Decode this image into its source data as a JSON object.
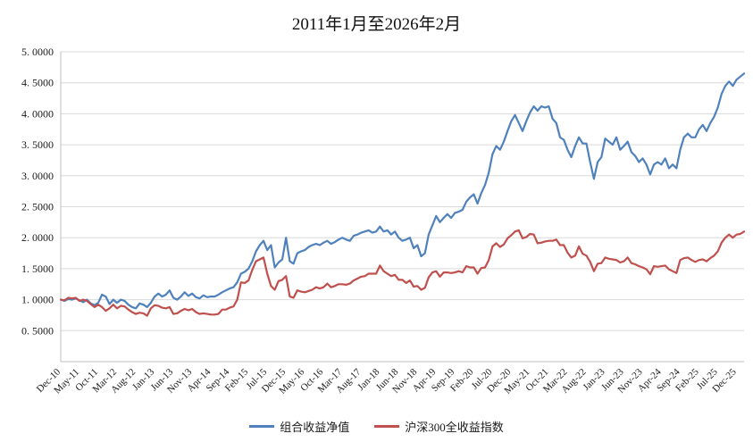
{
  "title": "2011年1月至2026年2月",
  "chart_data": {
    "type": "line",
    "title": "2011年1月至2026年2月",
    "xlabel": "",
    "ylabel": "",
    "ylim": [
      0,
      5
    ],
    "grid": true,
    "legend_position": "bottom",
    "n_points": 183,
    "x_tick_step_months": 5,
    "x_tick_labels": [
      "Dec-10",
      "May-11",
      "Oct-11",
      "Mar-12",
      "Aug-12",
      "Jan-13",
      "Jun-13",
      "Nov-13",
      "Apr-14",
      "Sep-14",
      "Feb-15",
      "Jul-15",
      "Dec-15",
      "May-16",
      "Oct-16",
      "Mar-17",
      "Aug-17",
      "Jan-18",
      "Jun-18",
      "Nov-18",
      "Apr-19",
      "Sep-19",
      "Feb-20",
      "Jul-20",
      "Dec-20",
      "May-21",
      "Oct-21",
      "Mar-22",
      "Aug-22",
      "Jan-23",
      "Jun-23",
      "Nov-23",
      "Apr-24",
      "Sep-24",
      "Feb-25",
      "Jul-25",
      "Dec-25"
    ],
    "y_ticks": [
      0.5,
      1.0,
      1.5,
      2.0,
      2.5,
      3.0,
      3.5,
      4.0,
      4.5,
      5.0
    ],
    "y_tick_labels": [
      "0. 5000",
      "1. 0000",
      "1. 5000",
      "2. 0000",
      "2. 5000",
      "3. 0000",
      "3. 5000",
      "4. 0000",
      "4. 5000",
      "5. 0000"
    ],
    "colors": {
      "grid": "#d9d9d9",
      "axis": "#bfbfbf",
      "text": "#1a1a1a"
    },
    "series": [
      {
        "name": "组合收益净值",
        "color": "#4F81BD",
        "values": [
          1.0,
          0.98,
          1.01,
          1.0,
          1.02,
          0.99,
          0.96,
          1.0,
          0.94,
          0.91,
          0.95,
          1.08,
          1.05,
          0.93,
          1.0,
          0.95,
          1.0,
          0.98,
          0.92,
          0.88,
          0.86,
          0.94,
          0.92,
          0.88,
          0.95,
          1.05,
          1.1,
          1.05,
          1.08,
          1.15,
          1.03,
          1.0,
          1.05,
          1.12,
          1.06,
          1.1,
          1.04,
          1.02,
          1.07,
          1.04,
          1.05,
          1.05,
          1.08,
          1.12,
          1.15,
          1.18,
          1.2,
          1.28,
          1.42,
          1.45,
          1.5,
          1.62,
          1.78,
          1.88,
          1.95,
          1.8,
          1.88,
          1.52,
          1.6,
          1.65,
          2.0,
          1.62,
          1.58,
          1.75,
          1.78,
          1.8,
          1.85,
          1.88,
          1.9,
          1.88,
          1.92,
          1.95,
          1.9,
          1.93,
          1.97,
          2.0,
          1.97,
          1.95,
          2.03,
          2.05,
          2.08,
          2.1,
          2.12,
          2.08,
          2.1,
          2.18,
          2.1,
          2.12,
          2.05,
          2.1,
          2.0,
          1.95,
          1.97,
          2.0,
          1.83,
          1.88,
          1.7,
          1.75,
          2.05,
          2.2,
          2.35,
          2.25,
          2.32,
          2.38,
          2.32,
          2.4,
          2.42,
          2.45,
          2.58,
          2.65,
          2.7,
          2.55,
          2.72,
          2.85,
          3.05,
          3.35,
          3.48,
          3.42,
          3.55,
          3.72,
          3.88,
          3.98,
          3.85,
          3.72,
          3.88,
          4.02,
          4.12,
          4.05,
          4.12,
          4.1,
          4.12,
          3.92,
          3.85,
          3.62,
          3.58,
          3.42,
          3.3,
          3.48,
          3.62,
          3.52,
          3.52,
          3.22,
          2.95,
          3.22,
          3.3,
          3.6,
          3.55,
          3.5,
          3.62,
          3.42,
          3.48,
          3.55,
          3.38,
          3.32,
          3.22,
          3.28,
          3.18,
          3.02,
          3.18,
          3.22,
          3.18,
          3.28,
          3.12,
          3.18,
          3.12,
          3.42,
          3.62,
          3.68,
          3.62,
          3.62,
          3.75,
          3.82,
          3.72,
          3.85,
          3.95,
          4.1,
          4.32,
          4.45,
          4.52,
          4.45,
          4.55,
          4.6,
          4.65
        ]
      },
      {
        "name": "沪深300全收益指数",
        "color": "#C0504D",
        "values": [
          1.0,
          0.99,
          1.03,
          1.02,
          1.03,
          0.98,
          1.0,
          0.98,
          0.93,
          0.88,
          0.92,
          0.88,
          0.82,
          0.86,
          0.92,
          0.86,
          0.9,
          0.89,
          0.84,
          0.8,
          0.77,
          0.79,
          0.78,
          0.74,
          0.86,
          0.91,
          0.9,
          0.87,
          0.86,
          0.88,
          0.77,
          0.78,
          0.82,
          0.85,
          0.83,
          0.85,
          0.8,
          0.77,
          0.78,
          0.77,
          0.76,
          0.76,
          0.77,
          0.84,
          0.84,
          0.87,
          0.89,
          1.0,
          1.28,
          1.27,
          1.31,
          1.48,
          1.62,
          1.65,
          1.68,
          1.42,
          1.22,
          1.16,
          1.3,
          1.32,
          1.38,
          1.05,
          1.03,
          1.15,
          1.13,
          1.12,
          1.14,
          1.16,
          1.2,
          1.18,
          1.2,
          1.26,
          1.2,
          1.22,
          1.25,
          1.25,
          1.24,
          1.26,
          1.31,
          1.34,
          1.37,
          1.38,
          1.42,
          1.42,
          1.42,
          1.55,
          1.46,
          1.42,
          1.38,
          1.4,
          1.32,
          1.32,
          1.27,
          1.31,
          1.21,
          1.22,
          1.16,
          1.19,
          1.36,
          1.44,
          1.46,
          1.37,
          1.44,
          1.44,
          1.43,
          1.44,
          1.46,
          1.44,
          1.54,
          1.52,
          1.52,
          1.42,
          1.51,
          1.52,
          1.64,
          1.86,
          1.91,
          1.85,
          1.89,
          1.99,
          2.04,
          2.1,
          2.12,
          1.99,
          2.01,
          2.06,
          2.05,
          1.91,
          1.92,
          1.94,
          1.95,
          1.95,
          1.97,
          1.88,
          1.88,
          1.76,
          1.68,
          1.71,
          1.86,
          1.74,
          1.71,
          1.61,
          1.46,
          1.58,
          1.59,
          1.68,
          1.66,
          1.65,
          1.64,
          1.6,
          1.62,
          1.68,
          1.59,
          1.57,
          1.54,
          1.52,
          1.49,
          1.41,
          1.54,
          1.53,
          1.54,
          1.55,
          1.49,
          1.46,
          1.43,
          1.64,
          1.67,
          1.68,
          1.64,
          1.61,
          1.64,
          1.65,
          1.62,
          1.67,
          1.71,
          1.78,
          1.92,
          2.0,
          2.05,
          2.0,
          2.05,
          2.06,
          2.1
        ]
      }
    ]
  },
  "legend": {
    "series1_label": "组合收益净值",
    "series2_label": "沪深300全收益指数"
  }
}
